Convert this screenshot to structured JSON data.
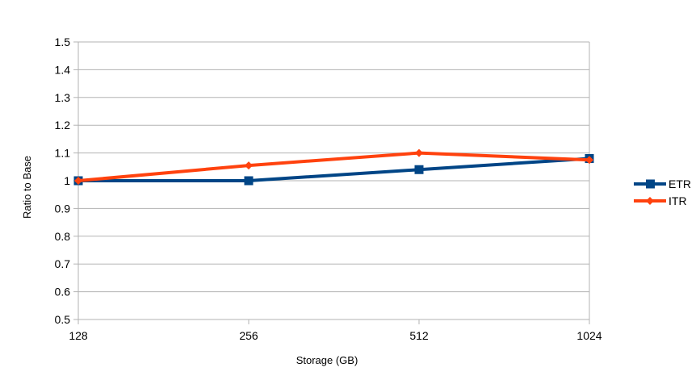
{
  "chart_data": {
    "type": "line",
    "title": "",
    "xlabel": "Storage (GB)",
    "ylabel": "Ratio to Base",
    "categories": [
      "128",
      "256",
      "512",
      "1024"
    ],
    "ylim": [
      0.5,
      1.5
    ],
    "yticks": [
      "0.5",
      "0.6",
      "0.7",
      "0.8",
      "0.9",
      "1",
      "1.1",
      "1.2",
      "1.3",
      "1.4",
      "1.5"
    ],
    "grid": true,
    "legend": "right",
    "series": [
      {
        "name": "ETR",
        "values": [
          1.0,
          1.0,
          1.04,
          1.08
        ],
        "color": "#004586",
        "marker": "square"
      },
      {
        "name": "ITR",
        "values": [
          1.0,
          1.055,
          1.1,
          1.075
        ],
        "color": "#ff420e",
        "marker": "diamond"
      }
    ]
  }
}
